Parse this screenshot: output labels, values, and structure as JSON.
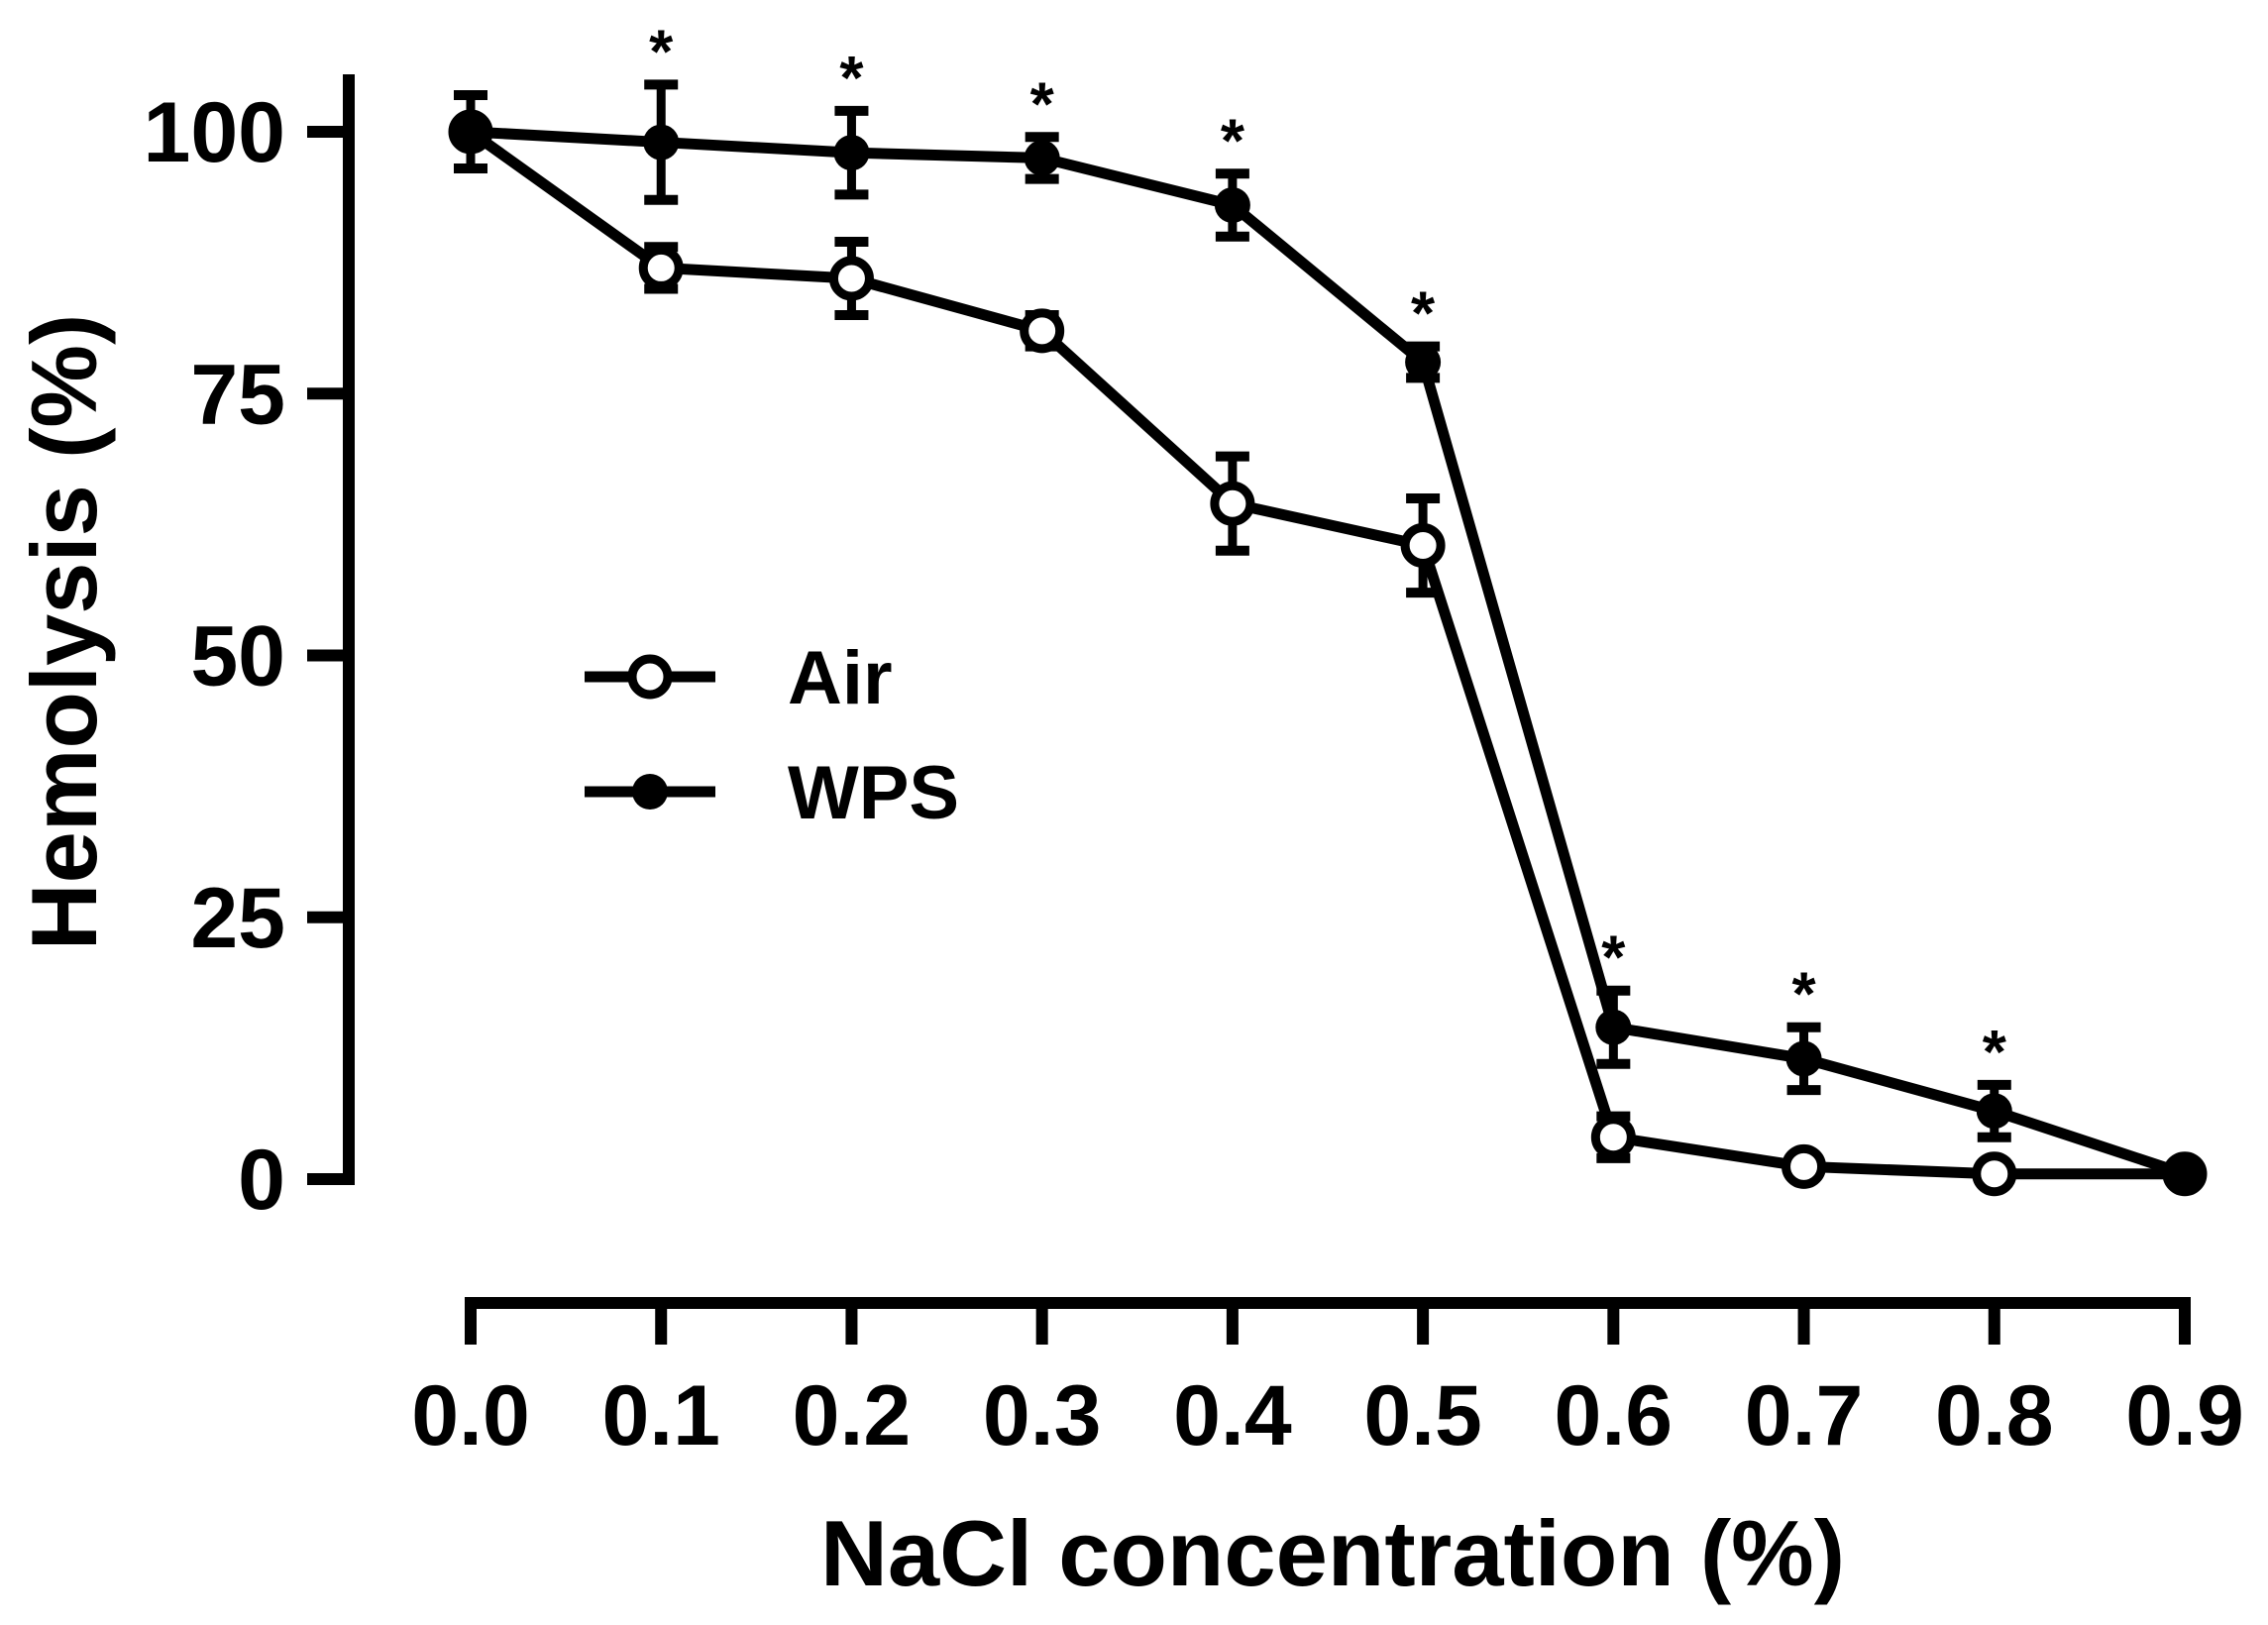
{
  "chart_data": {
    "type": "line",
    "title": "",
    "xlabel": "NaCl concentration (%)",
    "ylabel": "Hemolysis (%)",
    "x": [
      0.0,
      0.1,
      0.2,
      0.3,
      0.4,
      0.5,
      0.6,
      0.7,
      0.8,
      0.9
    ],
    "x_tick_labels": [
      "0.0",
      "0.1",
      "0.2",
      "0.3",
      "0.4",
      "0.5",
      "0.6",
      "0.7",
      "0.8",
      "0.9"
    ],
    "y_ticks": [
      0,
      25,
      50,
      75,
      100
    ],
    "y_tick_labels": [
      "0",
      "25",
      "50",
      "75",
      "100"
    ],
    "xlim": [
      0.0,
      0.9
    ],
    "ylim": [
      0,
      100
    ],
    "grid": false,
    "legend_position": "center-left",
    "series": [
      {
        "name": "Air",
        "marker": "open-circle",
        "values": [
          100,
          87,
          86,
          81,
          64.5,
          60.5,
          4,
          1.2,
          0.5,
          0.5
        ],
        "errors": [
          3.5,
          2,
          3.5,
          1.5,
          4.5,
          4.5,
          2,
          0.5,
          0.5,
          0
        ]
      },
      {
        "name": "WPS",
        "marker": "filled-circle",
        "values": [
          100,
          99,
          98,
          97.5,
          93,
          78,
          14.5,
          11.5,
          6.5,
          0.5
        ],
        "errors": [
          3.5,
          5.5,
          4,
          2,
          3,
          1.5,
          3.5,
          3,
          2.5,
          0
        ]
      }
    ],
    "annotations": {
      "significance_symbol": "*",
      "significant_x": [
        0.1,
        0.2,
        0.3,
        0.4,
        0.5,
        0.6,
        0.7,
        0.8
      ]
    }
  }
}
